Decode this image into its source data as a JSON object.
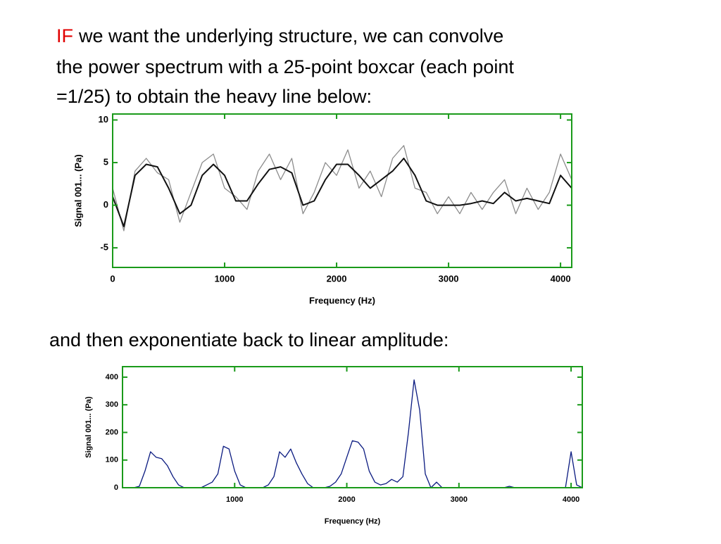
{
  "text": {
    "lead": "IF",
    "lines": [
      "we want the underlying structure, we can convolve",
      "the power spectrum with a 25-point boxcar (each point",
      "=1/25) to obtain the heavy line below:"
    ],
    "second": "and then exponentiate back to linear amplitude:"
  },
  "chart_data": [
    {
      "type": "line",
      "xlabel": "Frequency (Hz)",
      "ylabel": "Signal 001... (Pa)",
      "frame_color": "#1a9a1a",
      "x": [
        0,
        100,
        200,
        300,
        400,
        500,
        600,
        700,
        800,
        900,
        1000,
        1100,
        1200,
        1300,
        1400,
        1500,
        1600,
        1700,
        1800,
        1900,
        2000,
        2100,
        2200,
        2300,
        2400,
        2500,
        2600,
        2700,
        2800,
        2900,
        3000,
        3100,
        3200,
        3300,
        3400,
        3500,
        3600,
        3700,
        3800,
        3900,
        4000,
        4100
      ],
      "series": [
        {
          "color": "#8c8c8c",
          "values": [
            2,
            -3,
            4,
            5.5,
            3.8,
            3,
            -2,
            1.5,
            5,
            6,
            2,
            1,
            -0.5,
            4,
            6,
            3,
            5.5,
            -1,
            1.5,
            5,
            3.5,
            6.5,
            2,
            4,
            1,
            5.5,
            7,
            2,
            1.5,
            -1,
            1,
            -1,
            1.5,
            -0.5,
            1.5,
            3,
            -1,
            2,
            -0.5,
            1.5,
            6,
            3
          ]
        },
        {
          "color": "#111111",
          "values": [
            1,
            -2.5,
            3.5,
            4.8,
            4.5,
            2,
            -1,
            0,
            3.5,
            4.8,
            3.5,
            0.5,
            0.5,
            2.5,
            4.2,
            4.5,
            3.8,
            0,
            0.5,
            3,
            4.8,
            4.8,
            3.5,
            2,
            3,
            4,
            5.5,
            3.5,
            0.5,
            0,
            0,
            0,
            0.2,
            0.5,
            0.2,
            1.5,
            0.5,
            0.8,
            0.5,
            0.2,
            3.5,
            2
          ]
        }
      ],
      "xlim": [
        0,
        4100
      ],
      "ylim": [
        -7.3,
        10.7
      ],
      "xticks": [
        0,
        1000,
        2000,
        3000,
        4000
      ],
      "yticks": [
        -5,
        0,
        5,
        10
      ]
    },
    {
      "type": "line",
      "xlabel": "Frequency (Hz)",
      "ylabel": "Signal 001... (Pa)",
      "frame_color": "#1a9a1a",
      "x": [
        0,
        50,
        100,
        150,
        200,
        250,
        300,
        350,
        400,
        450,
        500,
        550,
        600,
        650,
        700,
        750,
        800,
        850,
        900,
        950,
        1000,
        1050,
        1100,
        1150,
        1200,
        1250,
        1300,
        1350,
        1400,
        1450,
        1500,
        1550,
        1600,
        1650,
        1700,
        1750,
        1800,
        1850,
        1900,
        1950,
        2000,
        2050,
        2100,
        2150,
        2200,
        2250,
        2300,
        2350,
        2400,
        2450,
        2500,
        2550,
        2600,
        2650,
        2700,
        2750,
        2800,
        2850,
        2900,
        2950,
        3000,
        3050,
        3100,
        3150,
        3200,
        3250,
        3300,
        3350,
        3400,
        3450,
        3500,
        3550,
        3600,
        3650,
        3700,
        3750,
        3800,
        3850,
        3900,
        3950,
        4000,
        4050,
        4100
      ],
      "series": [
        {
          "color": "#0a1a80",
          "values": [
            0,
            0,
            0,
            5,
            60,
            130,
            110,
            105,
            80,
            40,
            10,
            0,
            0,
            0,
            0,
            10,
            20,
            50,
            150,
            140,
            60,
            10,
            0,
            0,
            0,
            0,
            10,
            40,
            130,
            110,
            140,
            90,
            50,
            15,
            0,
            0,
            0,
            5,
            20,
            50,
            110,
            170,
            165,
            140,
            60,
            20,
            10,
            15,
            30,
            20,
            40,
            200,
            390,
            280,
            50,
            0,
            20,
            0,
            0,
            0,
            0,
            0,
            0,
            0,
            0,
            0,
            0,
            0,
            0,
            5,
            0,
            0,
            0,
            0,
            0,
            0,
            0,
            0,
            0,
            0,
            130,
            10,
            0
          ]
        }
      ],
      "xlim": [
        0,
        4100
      ],
      "ylim": [
        0,
        438
      ],
      "xticks": [
        1000,
        2000,
        3000,
        4000
      ],
      "yticks": [
        0,
        100,
        200,
        300,
        400
      ]
    }
  ]
}
